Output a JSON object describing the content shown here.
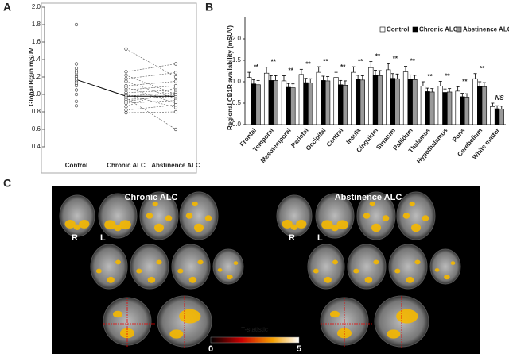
{
  "panel_labels": [
    "A",
    "B",
    "C"
  ],
  "chart_data": [
    {
      "type": "dot",
      "ylabel": "Global Brain mSUV",
      "categories": [
        "Control",
        "Chronic ALC",
        "Abstinence ALC"
      ],
      "points": [
        [
          1.8,
          1.35,
          1.3,
          1.27,
          1.25,
          1.22,
          1.2,
          1.18,
          1.16,
          1.14,
          1.12,
          1.1,
          1.05,
          1.0,
          0.92,
          0.87
        ],
        [
          1.52,
          1.26,
          1.22,
          1.18,
          1.15,
          1.1,
          1.08,
          1.05,
          1.02,
          1.0,
          0.98,
          0.96,
          0.94,
          0.92,
          0.9,
          0.86,
          0.82,
          0.79
        ],
        [
          1.2,
          1.35,
          1.0,
          1.25,
          0.95,
          1.15,
          0.9,
          1.1,
          1.05,
          0.85,
          1.02,
          0.6,
          0.98,
          1.0,
          0.93,
          1.08,
          0.88,
          0.8
        ]
      ],
      "means": [
        1.17,
        0.98,
        0.98
      ],
      "ylim": [
        0.4,
        2.0
      ],
      "yticks": [
        0.4,
        0.6,
        0.8,
        {
          "value": 1.0,
          "label": "1.0"
        },
        1.2,
        1.4,
        1.6,
        1.8,
        {
          "value": 2.0,
          "label": "2.0"
        }
      ]
    },
    {
      "type": "bar",
      "ylabel": "Regional CB1R availability (mSUV)",
      "categories": [
        "Frontal",
        "Temporal",
        "Mesotemporal",
        "Parietal",
        "Occipital",
        "Central",
        "Insula",
        "Cingulum",
        "Striatum",
        "Pallidum",
        "Thalamus",
        "Hypothalamus",
        "Pons",
        "Cerebellum",
        "White matter"
      ],
      "series": [
        {
          "name": "Control",
          "color": "#ffffff",
          "values": [
            1.1,
            1.2,
            1.02,
            1.17,
            1.22,
            1.1,
            1.22,
            1.33,
            1.28,
            1.23,
            0.9,
            0.9,
            0.78,
            1.07,
            0.42
          ],
          "errors": [
            0.12,
            0.14,
            0.12,
            0.12,
            0.13,
            0.12,
            0.13,
            0.14,
            0.14,
            0.13,
            0.1,
            0.11,
            0.1,
            0.12,
            0.08
          ]
        },
        {
          "name": "Chronic ALC",
          "color": "#000000",
          "values": [
            0.95,
            1.03,
            0.87,
            0.98,
            1.03,
            0.93,
            1.05,
            1.15,
            1.08,
            1.06,
            0.77,
            0.75,
            0.65,
            0.9,
            0.37
          ],
          "errors": [
            0.1,
            0.11,
            0.09,
            0.1,
            0.1,
            0.1,
            0.1,
            0.12,
            0.11,
            0.1,
            0.08,
            0.08,
            0.08,
            0.1,
            0.07
          ]
        },
        {
          "name": "Abstinence ALC",
          "color": "#999999",
          "values": [
            0.93,
            1.03,
            0.86,
            0.97,
            1.02,
            0.92,
            1.04,
            1.14,
            1.07,
            1.05,
            0.76,
            0.76,
            0.64,
            0.88,
            0.36
          ],
          "errors": [
            0.1,
            0.11,
            0.09,
            0.1,
            0.1,
            0.1,
            0.1,
            0.12,
            0.11,
            0.1,
            0.08,
            0.08,
            0.08,
            0.1,
            0.07
          ]
        }
      ],
      "annotations": [
        "**",
        "**",
        "**",
        "**",
        "**",
        "**",
        "**",
        "**",
        "**",
        "**",
        "**",
        "**",
        "**",
        "**",
        "NS"
      ],
      "ylim": [
        0,
        2.0
      ],
      "yticks": [
        {
          "value": 0,
          "label": "0.0"
        },
        0.5,
        {
          "value": 1.0,
          "label": "1.0"
        },
        1.5,
        {
          "value": 2.0,
          "label": "2.0"
        }
      ],
      "legend": "top-right"
    }
  ],
  "panel_c": {
    "left_title": "Chronic ALC",
    "right_title": "Abstinence ALC",
    "left_side": "R",
    "right_side": "L",
    "colorbar_title": "T-statistic",
    "colorbar_min": "0",
    "colorbar_max": "5"
  }
}
